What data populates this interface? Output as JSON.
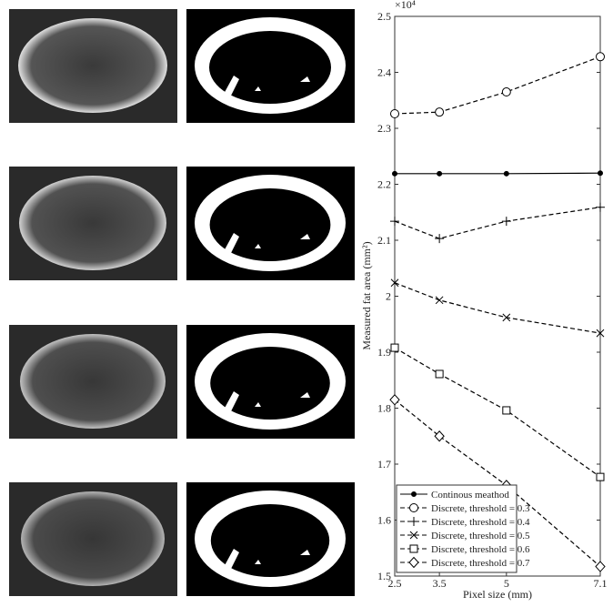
{
  "chart_data": {
    "type": "line",
    "exponent_label": "×10⁴",
    "xlabel": "Pixel size (mm)",
    "ylabel": "Measured fat area (mm²)",
    "x": [
      2.5,
      3.5,
      5,
      7.1
    ],
    "xlim": [
      2.5,
      7.1
    ],
    "xticks": [
      2.5,
      3.5,
      5,
      7.1
    ],
    "ylim": [
      1.5,
      2.5
    ],
    "yticks": [
      1.5,
      1.6,
      1.7,
      1.8,
      1.9,
      2,
      2.1,
      2.2,
      2.3,
      2.4,
      2.5
    ],
    "legend": "lower left",
    "series": [
      {
        "name": "Continous meathod",
        "color": "#000000",
        "marker": "dot",
        "dashed": false,
        "values": [
          2.219,
          2.219,
          2.219,
          2.22
        ]
      },
      {
        "name": "Discrete, threshold = 0.3",
        "color": "#000000",
        "marker": "circle",
        "dashed": true,
        "values": [
          2.326,
          2.329,
          2.365,
          2.428
        ]
      },
      {
        "name": "Discrete, threshold = 0.4",
        "color": "#000000",
        "marker": "plus",
        "dashed": true,
        "values": [
          2.134,
          2.103,
          2.134,
          2.159
        ]
      },
      {
        "name": "Discrete, threshold = 0.5",
        "color": "#000000",
        "marker": "cross",
        "dashed": true,
        "values": [
          2.024,
          1.993,
          1.962,
          1.934
        ]
      },
      {
        "name": "Discrete, threshold = 0.6",
        "color": "#000000",
        "marker": "square",
        "dashed": true,
        "values": [
          1.908,
          1.861,
          1.796,
          1.677
        ]
      },
      {
        "name": "Discrete, threshold = 0.7",
        "color": "#000000",
        "marker": "diamond",
        "dashed": true,
        "values": [
          1.815,
          1.75,
          1.662,
          1.517
        ]
      }
    ]
  }
}
